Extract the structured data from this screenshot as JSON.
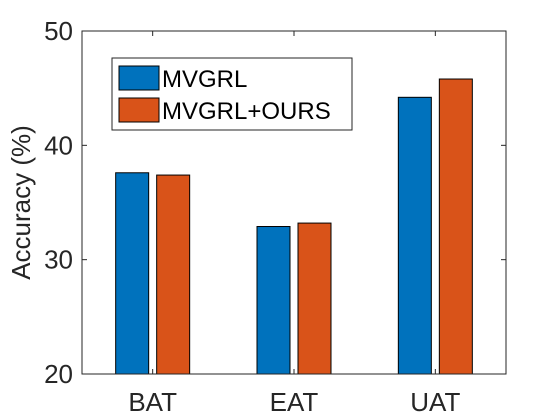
{
  "chart_data": {
    "type": "bar",
    "categories": [
      "BAT",
      "EAT",
      "UAT"
    ],
    "series": [
      {
        "name": "MVGRL",
        "values": [
          37.6,
          32.9,
          44.2
        ],
        "color": "#0072BD"
      },
      {
        "name": "MVGRL+OURS",
        "values": [
          37.4,
          33.2,
          45.8
        ],
        "color": "#D95319"
      }
    ],
    "xlabel": "",
    "ylabel": "Accuracy (%)",
    "ylim": [
      20,
      50
    ],
    "yticks": [
      20,
      30,
      40,
      50
    ],
    "grid": false,
    "legend_position": "top-left"
  }
}
